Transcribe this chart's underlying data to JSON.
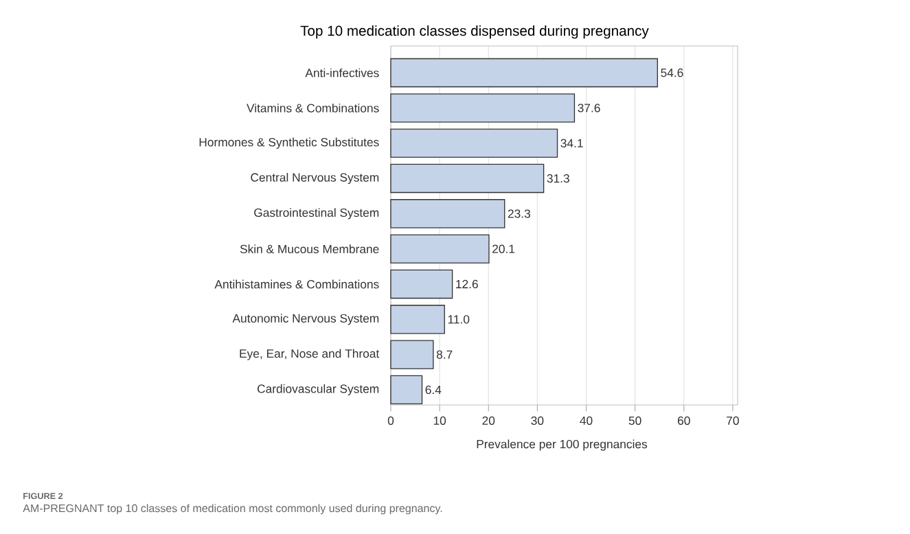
{
  "chart_data": {
    "type": "bar",
    "orientation": "horizontal",
    "title": "Top 10 medication classes dispensed during pregnancy",
    "xlabel": "Prevalence per 100 pregnancies",
    "categories": [
      "Anti-infectives",
      "Vitamins & Combinations",
      "Hormones & Synthetic Substitutes",
      "Central Nervous System",
      "Gastrointestinal System",
      "Skin & Mucous Membrane",
      "Antihistamines & Combinations",
      "Autonomic Nervous System",
      "Eye, Ear, Nose and Throat",
      "Cardiovascular System"
    ],
    "values": [
      54.6,
      37.6,
      34.1,
      31.3,
      23.3,
      20.1,
      12.6,
      11.0,
      8.7,
      6.4
    ],
    "value_labels": [
      "54.6",
      "37.6",
      "34.1",
      "31.3",
      "23.3",
      "20.1",
      "12.6",
      "11.0",
      "8.7",
      "6.4"
    ],
    "color": "#c5d3e8",
    "xlim": [
      0,
      71
    ],
    "xticks": [
      0,
      10,
      20,
      30,
      40,
      50,
      60,
      70
    ],
    "grid": "x",
    "annotations": [
      "FIGURE 2",
      "AM-PREGNANT top 10 classes of medication most commonly used during pregnancy."
    ]
  }
}
